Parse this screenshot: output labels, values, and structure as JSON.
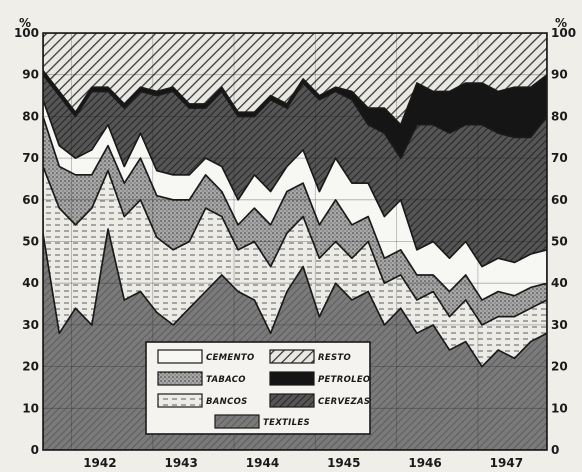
{
  "chart_data": {
    "type": "area",
    "stacked": true,
    "percent_axis_label": "%",
    "ylim": [
      0,
      100
    ],
    "y_ticks": [
      "100",
      "90",
      "80",
      "70",
      "60",
      "50",
      "40",
      "30",
      "20",
      "10",
      "0"
    ],
    "xlim": [
      1941.6,
      1947.8
    ],
    "x_tick_labels": [
      "1942",
      "1943",
      "1944",
      "1945",
      "1946",
      "1947"
    ],
    "grid": true,
    "legend_position": "bottom-center",
    "x": [
      1941.6,
      1941.8,
      1942.0,
      1942.2,
      1942.4,
      1942.6,
      1942.8,
      1943.0,
      1943.2,
      1943.4,
      1943.6,
      1943.8,
      1944.0,
      1944.2,
      1944.4,
      1944.6,
      1944.8,
      1945.0,
      1945.2,
      1945.4,
      1945.6,
      1945.8,
      1946.0,
      1946.2,
      1946.4,
      1946.6,
      1946.8,
      1947.0,
      1947.2,
      1947.4,
      1947.6,
      1947.8
    ],
    "series": [
      {
        "name": "TEXTILES",
        "values": [
          52,
          28,
          34,
          30,
          53,
          36,
          38,
          33,
          30,
          34,
          38,
          42,
          38,
          36,
          28,
          38,
          44,
          32,
          40,
          36,
          38,
          30,
          34,
          28,
          30,
          24,
          26,
          20,
          24,
          22,
          26,
          28
        ]
      },
      {
        "name": "BANCOS",
        "values": [
          16,
          30,
          20,
          28,
          14,
          20,
          22,
          18,
          18,
          16,
          20,
          14,
          10,
          14,
          16,
          14,
          12,
          14,
          10,
          10,
          12,
          10,
          8,
          8,
          8,
          8,
          10,
          10,
          8,
          10,
          8,
          8
        ]
      },
      {
        "name": "TABACO",
        "values": [
          12,
          10,
          12,
          8,
          6,
          8,
          10,
          10,
          12,
          10,
          8,
          6,
          6,
          8,
          10,
          10,
          8,
          8,
          10,
          8,
          6,
          6,
          6,
          6,
          4,
          6,
          6,
          6,
          6,
          5,
          5,
          4
        ]
      },
      {
        "name": "CEMENTO",
        "values": [
          4,
          5,
          4,
          6,
          5,
          4,
          6,
          6,
          6,
          6,
          4,
          6,
          6,
          8,
          8,
          6,
          8,
          8,
          10,
          10,
          8,
          10,
          12,
          6,
          8,
          8,
          8,
          8,
          8,
          8,
          8,
          8
        ]
      },
      {
        "name": "CERVEZAS",
        "values": [
          6,
          12,
          10,
          14,
          8,
          14,
          10,
          18,
          20,
          16,
          12,
          18,
          20,
          14,
          22,
          14,
          16,
          22,
          16,
          20,
          14,
          20,
          10,
          30,
          28,
          30,
          28,
          34,
          30,
          30,
          28,
          32
        ]
      },
      {
        "name": "PETROLEO",
        "values": [
          1,
          1,
          1,
          1,
          1,
          1,
          1,
          1,
          1,
          1,
          1,
          1,
          1,
          1,
          1,
          1,
          1,
          1,
          1,
          2,
          4,
          6,
          8,
          10,
          8,
          10,
          10,
          10,
          10,
          12,
          12,
          10
        ]
      },
      {
        "name": "RESTO",
        "values": [
          9,
          14,
          19,
          13,
          13,
          17,
          13,
          14,
          13,
          17,
          17,
          13,
          19,
          19,
          15,
          17,
          11,
          15,
          13,
          14,
          18,
          18,
          22,
          12,
          14,
          14,
          12,
          12,
          14,
          13,
          13,
          10
        ]
      }
    ],
    "legend": [
      "CEMENTO",
      "RESTO",
      "TABACO",
      "PETROLEO",
      "BANCOS",
      "CERVEZAS",
      "TEXTILES"
    ],
    "colors": {
      "paper": "#efeee9",
      "ink": "#1a1a1a",
      "textiles": "#6e6e6e",
      "bancos": "#ecebe6",
      "tabaco": "#9a9a9a",
      "cemento": "#f7f7f4",
      "cervezas": "#4a4a4a",
      "petroleo": "#151515",
      "resto": "#e9e8e3"
    }
  }
}
